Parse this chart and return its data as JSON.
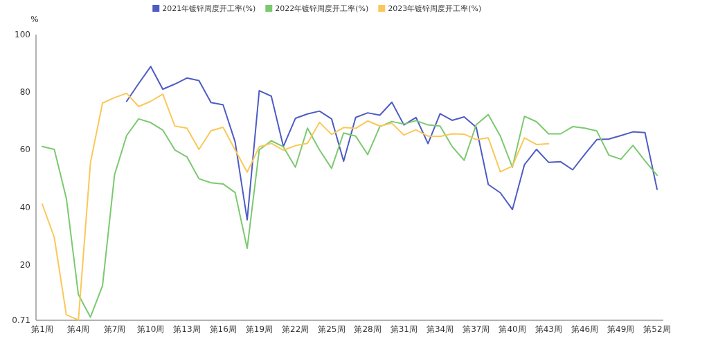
{
  "chart_data": {
    "type": "line",
    "ylabel": "%",
    "categories": [
      "第1周",
      null,
      null,
      "第4周",
      null,
      null,
      "第7周",
      null,
      null,
      "第10周",
      null,
      null,
      "第13周",
      null,
      null,
      "第16周",
      null,
      null,
      "第19周",
      null,
      null,
      "第22周",
      null,
      null,
      "第25周",
      null,
      null,
      "第28周",
      null,
      null,
      "第31周",
      null,
      null,
      "第34周",
      null,
      null,
      "第37周",
      null,
      null,
      "第40周",
      null,
      null,
      "第43周",
      null,
      null,
      "第46周",
      null,
      null,
      "第49周",
      null,
      null,
      "第52周"
    ],
    "series": [
      {
        "name": "2021年镀锌周度开工率(%)",
        "color": "#4e5cc4",
        "values": [
          null,
          null,
          null,
          null,
          null,
          null,
          null,
          76.8,
          83,
          88.9,
          81,
          82.8,
          84.9,
          84,
          76.4,
          75.6,
          62.7,
          35.6,
          80.5,
          78.6,
          61.1,
          70.9,
          72.4,
          73.4,
          70.7,
          56,
          71.2,
          72.8,
          72,
          76.5,
          68.6,
          71.2,
          62.1,
          72.5,
          70.2,
          71.4,
          67.8,
          47.9,
          45,
          39.2,
          54.8,
          60.1,
          55.6,
          55.8,
          53,
          58.4,
          63.5,
          63.7,
          64.9,
          66.2,
          65.9,
          46.2
        ]
      },
      {
        "name": "2022年镀锌周度开工率(%)",
        "color": "#7bc96f",
        "values": [
          61.1,
          60.1,
          43.1,
          9.6,
          1.8,
          12.7,
          51.3,
          64.9,
          70.7,
          69.4,
          66.8,
          59.9,
          57.5,
          49.9,
          48.5,
          48.1,
          45.1,
          25.7,
          59.9,
          63.1,
          61,
          53.9,
          67.5,
          59.9,
          53.5,
          65.8,
          64.7,
          58.3,
          68,
          69.8,
          68.9,
          70.1,
          68.6,
          68.2,
          61.1,
          56.3,
          68.7,
          72.2,
          64.7,
          53.9,
          71.6,
          69.7,
          65.5,
          65.5,
          68,
          67.5,
          66.5,
          58.1,
          56.7,
          61.5,
          56.1,
          51.1
        ]
      },
      {
        "name": "2023年镀锌周度开工率(%)",
        "color": "#fac858",
        "values": [
          41.1,
          29.5,
          2.6,
          0.8,
          55.5,
          76.2,
          78.1,
          79.6,
          75,
          76.8,
          79.3,
          68.2,
          67.5,
          60.1,
          66.6,
          67.8,
          59.9,
          52.2,
          61,
          62.2,
          59.8,
          61.4,
          62.2,
          69.5,
          65.3,
          67.7,
          67.4,
          70,
          68.2,
          69.2,
          65.1,
          66.9,
          64.7,
          64.6,
          65.5,
          65.4,
          63.5,
          64.1,
          52.3,
          54.3,
          64.1,
          61.8,
          62.1,
          null,
          null,
          null,
          null,
          null,
          null,
          null,
          null,
          null
        ]
      }
    ],
    "ylim": [
      0.71,
      100
    ],
    "yticks": [
      0.71,
      20,
      40,
      60,
      80,
      100
    ],
    "grid": false,
    "legend": "top",
    "marker": "none",
    "line_style": "solid"
  }
}
